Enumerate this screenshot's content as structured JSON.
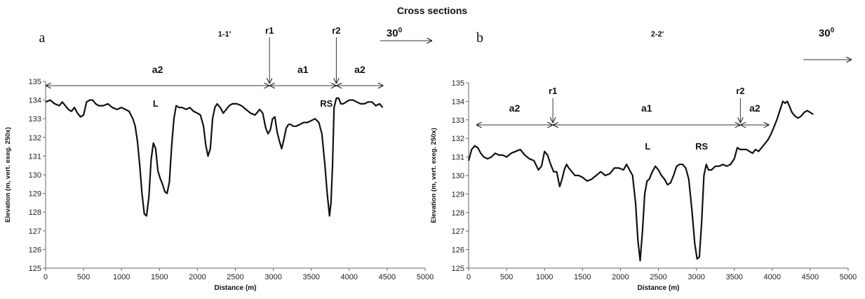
{
  "figure_title": "Cross sections",
  "chart_data": [
    {
      "type": "line",
      "panel_letter": "a",
      "section_label": "1-1'",
      "north_label": "30",
      "north_sup": "0",
      "xlabel": "Distance (m)",
      "ylabel": "Elevation (m, vert. exeg. 250x)",
      "xlim": [
        0,
        5000
      ],
      "ylim": [
        125,
        135
      ],
      "xticks": [
        0,
        500,
        1000,
        1500,
        2000,
        2500,
        3000,
        3500,
        4000,
        4500,
        5000
      ],
      "yticks": [
        125,
        126,
        127,
        128,
        129,
        130,
        131,
        132,
        133,
        134,
        135
      ],
      "grid": false,
      "series": [
        {
          "x": [
            0,
            60,
            120,
            180,
            220,
            260,
            300,
            340,
            380,
            420,
            460,
            500,
            540,
            580,
            620,
            660,
            700,
            760,
            820,
            880,
            940,
            1000,
            1050,
            1100,
            1150,
            1180,
            1210,
            1240,
            1270,
            1300,
            1330,
            1360,
            1390,
            1420,
            1450,
            1480,
            1510,
            1540,
            1570,
            1600,
            1630,
            1660,
            1690,
            1720,
            1760,
            1800,
            1850,
            1900,
            1950,
            2000,
            2040,
            2080,
            2110,
            2140,
            2170,
            2200,
            2230,
            2260,
            2300,
            2340,
            2380,
            2420,
            2460,
            2520,
            2580,
            2640,
            2700,
            2760,
            2820,
            2860,
            2900,
            2930,
            2960,
            2990,
            3020,
            3050,
            3080,
            3110,
            3140,
            3170,
            3200,
            3230,
            3260,
            3300,
            3350,
            3400,
            3450,
            3500,
            3550,
            3600,
            3640,
            3680,
            3710,
            3740,
            3760,
            3780,
            3800,
            3830,
            3860,
            3890,
            3920,
            3960,
            4000,
            4050,
            4100,
            4150,
            4200,
            4250,
            4300,
            4350,
            4400,
            4440
          ],
          "y": [
            133.9,
            134.0,
            133.8,
            133.7,
            133.9,
            133.7,
            133.5,
            133.4,
            133.6,
            133.3,
            133.1,
            133.2,
            133.9,
            134.0,
            134.0,
            133.8,
            133.7,
            133.7,
            133.8,
            133.6,
            133.5,
            133.6,
            133.5,
            133.4,
            133.0,
            132.6,
            131.8,
            130.5,
            129.0,
            127.9,
            127.8,
            128.8,
            130.8,
            131.7,
            131.4,
            130.2,
            129.8,
            129.5,
            129.1,
            129.0,
            129.6,
            131.5,
            133.0,
            133.7,
            133.6,
            133.6,
            133.5,
            133.6,
            133.4,
            133.3,
            133.2,
            132.6,
            131.6,
            131.0,
            131.4,
            133.0,
            133.6,
            133.8,
            133.6,
            133.3,
            133.5,
            133.7,
            133.8,
            133.8,
            133.7,
            133.5,
            133.3,
            133.2,
            133.5,
            133.3,
            132.5,
            132.2,
            132.4,
            133.0,
            133.1,
            132.3,
            131.8,
            131.4,
            131.9,
            132.5,
            132.7,
            132.7,
            132.6,
            132.6,
            132.7,
            132.8,
            132.8,
            132.9,
            133.0,
            132.8,
            132.2,
            130.5,
            129.0,
            127.8,
            128.5,
            130.5,
            133.6,
            134.1,
            134.1,
            133.8,
            133.8,
            133.9,
            134.0,
            134.0,
            133.9,
            133.8,
            133.8,
            133.9,
            133.9,
            133.7,
            133.8,
            133.6
          ]
        }
      ],
      "annotations": [
        {
          "text": "L",
          "x": 1450,
          "y": 133.55
        },
        {
          "text": "RS",
          "x": 3700,
          "y": 133.55
        }
      ],
      "markers": [
        {
          "label": "r1",
          "x": 2950
        },
        {
          "label": "r2",
          "x": 3830
        }
      ],
      "zones": [
        {
          "label": "a2",
          "x1": 0,
          "x2": 2950
        },
        {
          "label": "a1",
          "x1": 2950,
          "x2": 3830
        },
        {
          "label": "a2",
          "x1": 3830,
          "x2": 4450
        }
      ]
    },
    {
      "type": "line",
      "panel_letter": "b",
      "section_label": "2-2'",
      "north_label": "30",
      "north_sup": "0",
      "xlabel": "Distance (m)",
      "ylabel": "Elevation (m, vert. exeg. 250x)",
      "xlim": [
        0,
        5000
      ],
      "ylim": [
        125,
        135
      ],
      "xticks": [
        0,
        500,
        1000,
        1500,
        2000,
        2500,
        3000,
        3500,
        4000,
        4500,
        5000
      ],
      "yticks": [
        125,
        126,
        127,
        128,
        129,
        130,
        131,
        132,
        133,
        134,
        135
      ],
      "grid": false,
      "series": [
        {
          "x": [
            0,
            40,
            80,
            120,
            160,
            200,
            250,
            300,
            350,
            400,
            450,
            500,
            560,
            620,
            680,
            740,
            800,
            860,
            920,
            960,
            1000,
            1040,
            1080,
            1120,
            1160,
            1200,
            1230,
            1260,
            1290,
            1320,
            1360,
            1400,
            1450,
            1500,
            1560,
            1620,
            1680,
            1740,
            1800,
            1860,
            1920,
            1980,
            2040,
            2080,
            2120,
            2160,
            2200,
            2230,
            2260,
            2290,
            2320,
            2350,
            2380,
            2420,
            2460,
            2500,
            2540,
            2580,
            2620,
            2660,
            2700,
            2740,
            2780,
            2820,
            2860,
            2900,
            2940,
            2980,
            3010,
            3040,
            3070,
            3100,
            3130,
            3160,
            3200,
            3250,
            3300,
            3350,
            3400,
            3450,
            3500,
            3540,
            3580,
            3620,
            3660,
            3700,
            3740,
            3780,
            3820,
            3860,
            3900,
            3940,
            3980,
            4020,
            4060,
            4100,
            4140,
            4170,
            4200,
            4230,
            4260,
            4300,
            4340,
            4380,
            4420,
            4460,
            4500,
            4540
          ],
          "y": [
            130.8,
            131.4,
            131.6,
            131.5,
            131.2,
            131.0,
            130.9,
            131.0,
            131.2,
            131.1,
            131.1,
            131.0,
            131.2,
            131.3,
            131.4,
            131.1,
            130.9,
            130.8,
            130.3,
            130.5,
            131.3,
            131.1,
            130.6,
            130.2,
            130.2,
            129.4,
            129.8,
            130.3,
            130.6,
            130.4,
            130.2,
            130.0,
            130.0,
            129.9,
            129.7,
            129.8,
            130.0,
            130.2,
            130.0,
            130.1,
            130.4,
            130.4,
            130.3,
            130.6,
            130.3,
            130.0,
            128.5,
            126.5,
            125.4,
            127.0,
            129.0,
            129.7,
            129.8,
            130.2,
            130.5,
            130.3,
            130.0,
            129.8,
            129.5,
            129.6,
            130.0,
            130.5,
            130.6,
            130.6,
            130.4,
            129.8,
            128.2,
            126.3,
            125.5,
            125.6,
            127.5,
            130.0,
            130.6,
            130.3,
            130.3,
            130.5,
            130.5,
            130.6,
            130.5,
            130.6,
            130.9,
            131.5,
            131.4,
            131.4,
            131.4,
            131.3,
            131.2,
            131.4,
            131.3,
            131.5,
            131.7,
            131.9,
            132.2,
            132.6,
            133.0,
            133.5,
            134.0,
            133.9,
            134.0,
            133.7,
            133.4,
            133.2,
            133.1,
            133.2,
            133.4,
            133.5,
            133.4,
            133.3
          ],
          "name": ""
        }
      ],
      "annotations": [
        {
          "text": "L",
          "x": 2360,
          "y": 131.1
        },
        {
          "text": "RS",
          "x": 3070,
          "y": 131.1
        }
      ],
      "markers": [
        {
          "label": "r1",
          "x": 1110
        },
        {
          "label": "r2",
          "x": 3580
        }
      ],
      "zones": [
        {
          "label": "a2",
          "x1": 100,
          "x2": 1110
        },
        {
          "label": "a1",
          "x1": 1110,
          "x2": 3580
        },
        {
          "label": "a2",
          "x1": 3580,
          "x2": 3960
        }
      ]
    }
  ]
}
